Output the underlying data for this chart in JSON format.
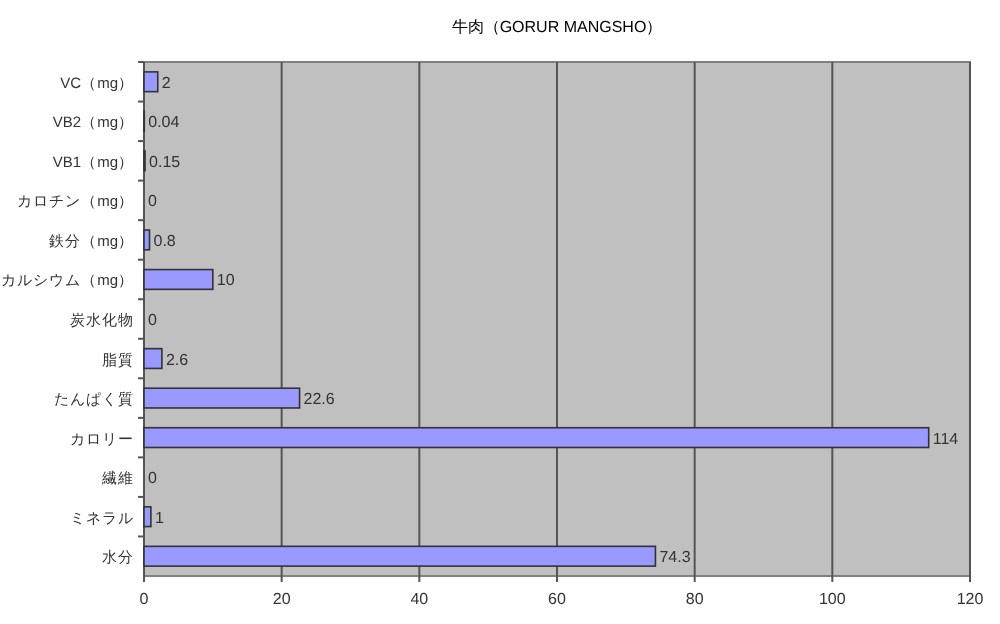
{
  "chart_data": {
    "type": "bar",
    "orientation": "horizontal",
    "title": "牛肉（GORUR MANGSHO）",
    "categories": [
      "VC（mg）",
      "VB2（mg）",
      "VB1（mg）",
      "カロチン（mg）",
      "鉄分（mg）",
      "カルシウム（mg）",
      "炭水化物",
      "脂質",
      "たんぱく質",
      "カロリー",
      "繊維",
      "ミネラル",
      "水分"
    ],
    "values": [
      2,
      0.04,
      0.15,
      0,
      0.8,
      10,
      0,
      2.6,
      22.6,
      114,
      0,
      1,
      74.3
    ],
    "color": "#9999ff",
    "xlim": [
      0,
      120
    ],
    "xticks": [
      0,
      20,
      40,
      60,
      80,
      100,
      120
    ],
    "grid": "x",
    "data_labels": true
  }
}
